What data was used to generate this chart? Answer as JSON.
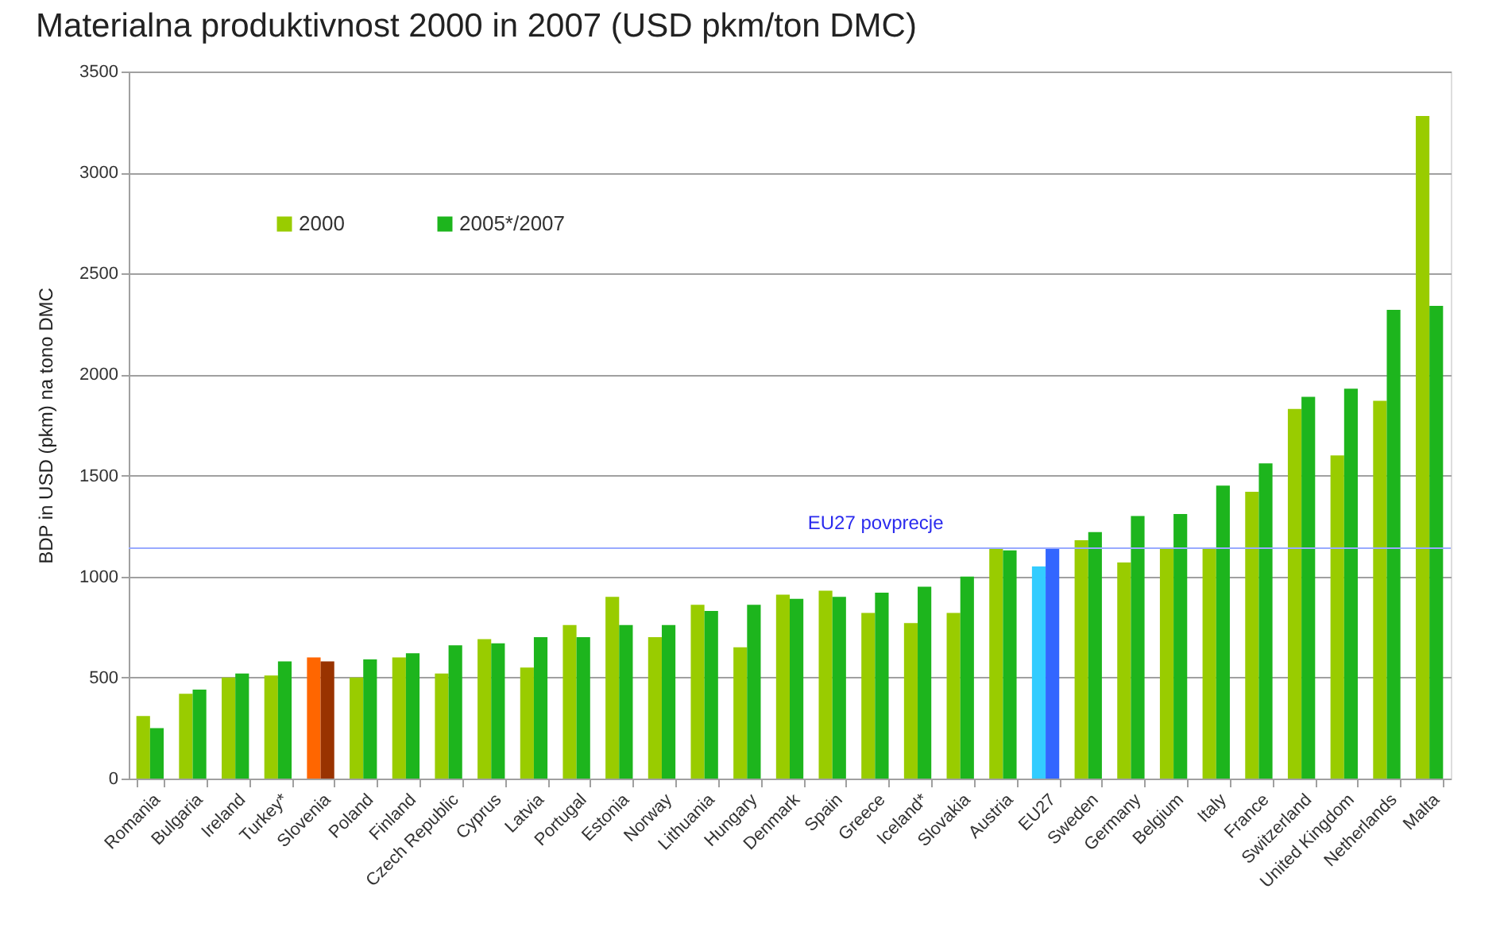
{
  "chart_data": {
    "type": "bar",
    "title": "Materialna produktivnost 2000 in 2007 (USD pkm/ton DMC)",
    "ylabel": "BDP in USD (pkm) na tono DMC",
    "categories": [
      "Romania",
      "Bulgaria",
      "Ireland",
      "Turkey*",
      "Slovenia",
      "Poland",
      "Finland",
      "Czech Republic",
      "Cyprus",
      "Latvia",
      "Portugal",
      "Estonia",
      "Norway",
      "Lithuania",
      "Hungary",
      "Denmark",
      "Spain",
      "Greece",
      "Iceland*",
      "Slovakia",
      "Austria",
      "EU27",
      "Sweden",
      "Germany",
      "Belgium",
      "Italy",
      "France",
      "Switzerland",
      "United Kingdom",
      "Netherlands",
      "Malta"
    ],
    "series": [
      {
        "name": "2000",
        "color": "#99cc00",
        "colors": [
          "#99cc00",
          "#99cc00",
          "#99cc00",
          "#99cc00",
          "#ff6600",
          "#99cc00",
          "#99cc00",
          "#99cc00",
          "#99cc00",
          "#99cc00",
          "#99cc00",
          "#99cc00",
          "#99cc00",
          "#99cc00",
          "#99cc00",
          "#99cc00",
          "#99cc00",
          "#99cc00",
          "#99cc00",
          "#99cc00",
          "#99cc00",
          "#33ccff",
          "#99cc00",
          "#99cc00",
          "#99cc00",
          "#99cc00",
          "#99cc00",
          "#99cc00",
          "#99cc00",
          "#99cc00",
          "#99cc00"
        ],
        "values": [
          310,
          420,
          500,
          510,
          600,
          500,
          600,
          520,
          690,
          550,
          760,
          900,
          700,
          860,
          650,
          910,
          930,
          820,
          770,
          820,
          1140,
          1050,
          1180,
          1070,
          1140,
          1140,
          1420,
          1830,
          1600,
          1870,
          3280
        ]
      },
      {
        "name": "2005*/2007",
        "color": "#1db51d",
        "colors": [
          "#1db51d",
          "#1db51d",
          "#1db51d",
          "#1db51d",
          "#993300",
          "#1db51d",
          "#1db51d",
          "#1db51d",
          "#1db51d",
          "#1db51d",
          "#1db51d",
          "#1db51d",
          "#1db51d",
          "#1db51d",
          "#1db51d",
          "#1db51d",
          "#1db51d",
          "#1db51d",
          "#1db51d",
          "#1db51d",
          "#1db51d",
          "#3366ff",
          "#1db51d",
          "#1db51d",
          "#1db51d",
          "#1db51d",
          "#1db51d",
          "#1db51d",
          "#1db51d",
          "#1db51d",
          "#1db51d"
        ],
        "values": [
          250,
          440,
          520,
          580,
          580,
          590,
          620,
          660,
          670,
          700,
          700,
          760,
          760,
          830,
          860,
          890,
          900,
          920,
          950,
          1000,
          1130,
          1140,
          1220,
          1300,
          1310,
          1450,
          1560,
          1890,
          1930,
          2320,
          2340
        ]
      }
    ],
    "ylim": [
      0,
      3500
    ],
    "yticks": [
      0,
      500,
      1000,
      1500,
      2000,
      2500,
      3000,
      3500
    ],
    "grid": "y",
    "legend": "top left",
    "ref_lines": [
      {
        "axis": "y",
        "value": 1140,
        "label": "EU27 povprecje",
        "color": "#99aaff"
      }
    ]
  }
}
